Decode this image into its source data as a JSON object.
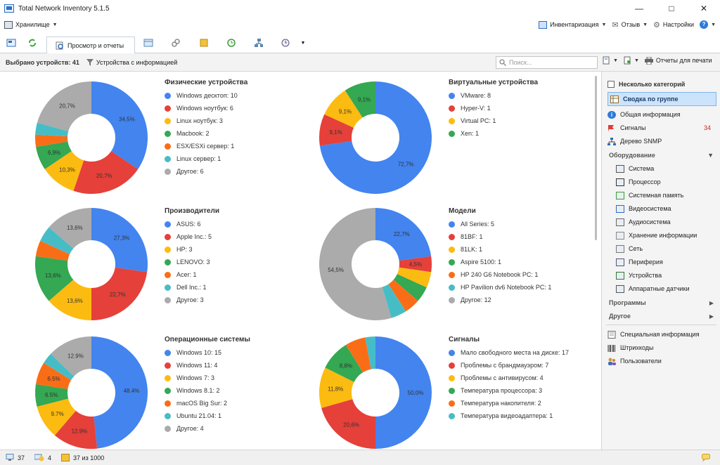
{
  "window": {
    "title": "Total Network Inventory 5.1.5"
  },
  "menubar": {
    "storage": "Хранилище",
    "inventory": "Инвентаризация",
    "feedback": "Отзыв",
    "settings": "Настройки"
  },
  "tabs": {
    "active_label": "Просмотр и отчеты"
  },
  "toolbar": {
    "selected": "Выбрано устройств: 41",
    "filter": "Устройства с информацией",
    "search_placeholder": "Поиск...",
    "print_reports": "Отчеты для печати"
  },
  "chart_data": [
    {
      "type": "pie",
      "title": "Физические устройства",
      "categories": [
        "Windows десктоп: 10",
        "Windows ноутбук: 6",
        "Linux ноутбук: 3",
        "Macbook: 2",
        "ESX/ESXi сервер: 1",
        "Linux сервер: 1",
        "Другое: 6"
      ],
      "values": [
        10,
        6,
        3,
        2,
        1,
        1,
        6
      ],
      "colors": [
        "#4384EF",
        "#E5403A",
        "#FCBB11",
        "#34A853",
        "#FA6D17",
        "#46BDC6",
        "#ABABAB"
      ],
      "labels": [
        "34,5%",
        "20,7%",
        "10,3%",
        "6,9%",
        "",
        "",
        "20,7%"
      ]
    },
    {
      "type": "pie",
      "title": "Виртуальные устройства",
      "categories": [
        "VMware: 8",
        "Hyper-V: 1",
        "Virtual PC: 1",
        "Xen: 1"
      ],
      "values": [
        8,
        1,
        1,
        1
      ],
      "colors": [
        "#4384EF",
        "#E5403A",
        "#FCBB11",
        "#34A853"
      ],
      "labels": [
        "72,7%",
        "9,1%",
        "9,1%",
        "9,1%"
      ]
    },
    {
      "type": "pie",
      "title": "Производители",
      "categories": [
        "ASUS: 6",
        "Apple Inc.: 5",
        "HP: 3",
        "LENOVO: 3",
        "Acer: 1",
        "Dell Inc.: 1",
        "Другое: 3"
      ],
      "values": [
        6,
        5,
        3,
        3,
        1,
        1,
        3
      ],
      "colors": [
        "#4384EF",
        "#E5403A",
        "#FCBB11",
        "#34A853",
        "#FA6D17",
        "#46BDC6",
        "#ABABAB"
      ],
      "labels": [
        "27,3%",
        "22,7%",
        "13,6%",
        "13,6%",
        "",
        "",
        "13,6%"
      ]
    },
    {
      "type": "pie",
      "title": "Модели",
      "categories": [
        "All Series: 5",
        "81BF: 1",
        "81LK: 1",
        "Aspire 5100: 1",
        "HP 240 G6 Notebook PC: 1",
        "HP Pavilion dv6 Notebook PC: 1",
        "Другое: 12"
      ],
      "values": [
        5,
        1,
        1,
        1,
        1,
        1,
        12
      ],
      "colors": [
        "#4384EF",
        "#E5403A",
        "#FCBB11",
        "#34A853",
        "#FA6D17",
        "#46BDC6",
        "#ABABAB"
      ],
      "labels": [
        "22,7%",
        "4,5%",
        "",
        "",
        "",
        "",
        "54,5%"
      ]
    },
    {
      "type": "pie",
      "title": "Операционные системы",
      "categories": [
        "Windows 10: 15",
        "Windows 11: 4",
        "Windows 7: 3",
        "Windows 8.1: 2",
        "macOS Big Sur: 2",
        "Ubuntu 21.04: 1",
        "Другое: 4"
      ],
      "values": [
        15,
        4,
        3,
        2,
        2,
        1,
        4
      ],
      "colors": [
        "#4384EF",
        "#E5403A",
        "#FCBB11",
        "#34A853",
        "#FA6D17",
        "#46BDC6",
        "#ABABAB"
      ],
      "labels": [
        "48.4%",
        "12.9%",
        "9.7%",
        "6.5%",
        "6.5%",
        "",
        "12.9%"
      ]
    },
    {
      "type": "pie",
      "title": "Сигналы",
      "categories": [
        "Мало свободного места на диске: 17",
        "Проблемы с брандмауэром: 7",
        "Проблемы с антивирусом: 4",
        "Температура процессора: 3",
        "Температура накопителя: 2",
        "Температура видеоадаптера: 1"
      ],
      "values": [
        17,
        7,
        4,
        3,
        2,
        1
      ],
      "colors": [
        "#4384EF",
        "#E5403A",
        "#FCBB11",
        "#34A853",
        "#FA6D17",
        "#46BDC6"
      ],
      "labels": [
        "50,0%",
        "20,6%",
        "11,8%",
        "8,8%",
        "",
        ""
      ]
    }
  ],
  "sidebar": {
    "multi_categories": "Несколько категорий",
    "group_summary": "Сводка по группе",
    "general_info": "Общая информация",
    "alerts": "Сигналы",
    "alerts_count": "34",
    "snmp_tree": "Дерево SNMP",
    "hardware": "Оборудование",
    "hw_items": [
      "Система",
      "Процессор",
      "Системная память",
      "Видеосистема",
      "Аудиосистема",
      "Хранение информации",
      "Сеть",
      "Периферия",
      "Устройства",
      "Аппаратные датчики"
    ],
    "programs": "Программы",
    "other": "Другое",
    "special_info": "Специальная информация",
    "barcodes": "Штрихкоды",
    "users": "Пользователи"
  },
  "status": {
    "devices": "37",
    "warnings": "4",
    "license": "37 из 1000"
  }
}
